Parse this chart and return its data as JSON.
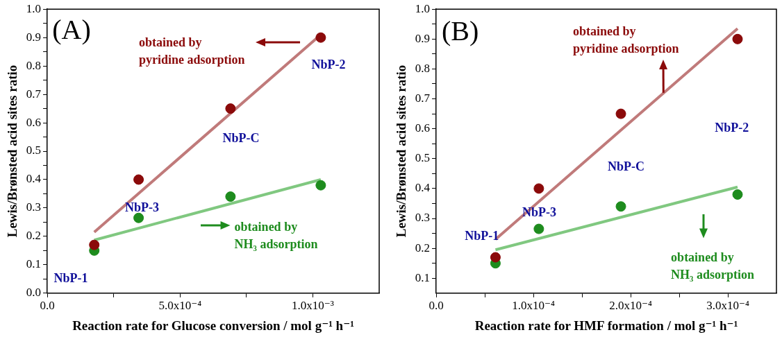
{
  "chart_data": [
    {
      "type": "scatter",
      "marker": "circle",
      "grid": false,
      "legend": false,
      "xlabel": "Reaction rate for Glucose conversion / mol g⁻¹ h⁻¹",
      "ylabel": "Lewis/Brønsted acid sites ratio",
      "xlim": [
        0,
        0.00125
      ],
      "xticks": [
        {
          "value": 0,
          "label": "0.0"
        },
        {
          "value": 0.00025,
          "label": null
        },
        {
          "value": 0.0005,
          "label": "5.0x10⁻⁴"
        },
        {
          "value": 0.00075,
          "label": null
        },
        {
          "value": 0.001,
          "label": "1.0x10⁻³"
        }
      ],
      "ylim": [
        0,
        1
      ],
      "yticks": [
        {
          "value": 0,
          "label": "0.0"
        },
        {
          "value": 0.05,
          "label": null
        },
        0.1,
        {
          "value": 0.15,
          "label": null
        },
        0.2,
        {
          "value": 0.25,
          "label": null
        },
        0.3,
        {
          "value": 0.35,
          "label": null
        },
        0.4,
        {
          "value": 0.45,
          "label": null
        },
        0.5,
        {
          "value": 0.55,
          "label": null
        },
        0.6,
        {
          "value": 0.65,
          "label": null
        },
        0.7,
        {
          "value": 0.75,
          "label": null
        },
        0.8,
        {
          "value": 0.85,
          "label": null
        },
        0.9,
        {
          "value": 0.95,
          "label": null
        },
        {
          "value": 1,
          "label": "1.0"
        }
      ],
      "x": [
        0.000177,
        0.000344,
        0.00069,
        0.00103
      ],
      "series": [
        {
          "color": "#8b0a0a",
          "values": [
            0.17,
            0.4,
            0.65,
            0.9
          ]
        },
        {
          "color": "#1e8c1e",
          "values": [
            0.15,
            0.265,
            0.34,
            0.38
          ]
        },
        {
          "type": "line",
          "marker": "none",
          "color": "#c07a7a",
          "x": [
            0.000177,
            0.00103
          ],
          "values": [
            0.215,
            0.91
          ]
        },
        {
          "type": "line",
          "marker": "none",
          "color": "#80c880",
          "x": [
            0.000177,
            0.00103
          ],
          "values": [
            0.187,
            0.4
          ]
        }
      ],
      "annotations": [
        "(A)",
        "obtained by\npyridine adsorption",
        "NbP-2",
        "NbP-C",
        "NbP-3",
        "NbP-1",
        "obtained by\nNH₃ adsorption"
      ]
    },
    {
      "type": "scatter",
      "marker": "circle",
      "grid": false,
      "legend": false,
      "xlabel": "Reaction rate for HMF formation / mol g⁻¹ h⁻¹",
      "ylabel": "Lewis/Brønsted acid sites ratio",
      "xlim": [
        0,
        0.00035
      ],
      "xticks": [
        {
          "value": 0,
          "label": "0.0"
        },
        {
          "value": 5e-05,
          "label": null
        },
        {
          "value": 0.0001,
          "label": "1.0x10⁻⁴"
        },
        {
          "value": 0.00015,
          "label": null
        },
        {
          "value": 0.0002,
          "label": "2.0x10⁻⁴"
        },
        {
          "value": 0.00025,
          "label": null
        },
        {
          "value": 0.0003,
          "label": "3.0x10⁻⁴"
        }
      ],
      "ylim": [
        0.05,
        1
      ],
      "yticks": [
        0.1,
        {
          "value": 0.15,
          "label": null
        },
        0.2,
        {
          "value": 0.25,
          "label": null
        },
        0.3,
        {
          "value": 0.35,
          "label": null
        },
        0.4,
        {
          "value": 0.45,
          "label": null
        },
        0.5,
        {
          "value": 0.55,
          "label": null
        },
        0.6,
        {
          "value": 0.65,
          "label": null
        },
        0.7,
        {
          "value": 0.75,
          "label": null
        },
        0.8,
        {
          "value": 0.85,
          "label": null
        },
        0.9,
        {
          "value": 0.95,
          "label": null
        },
        {
          "value": 1,
          "label": "1.0"
        }
      ],
      "x": [
        6.1e-05,
        0.0001056,
        0.00019,
        0.00031
      ],
      "series": [
        {
          "color": "#8b0a0a",
          "values": [
            0.17,
            0.4,
            0.65,
            0.9
          ]
        },
        {
          "color": "#1e8c1e",
          "values": [
            0.15,
            0.265,
            0.34,
            0.38
          ]
        },
        {
          "type": "line",
          "marker": "none",
          "color": "#c07a7a",
          "x": [
            6.1e-05,
            0.00031
          ],
          "values": [
            0.23,
            0.935
          ]
        },
        {
          "type": "line",
          "marker": "none",
          "color": "#80c880",
          "x": [
            6.1e-05,
            0.00031
          ],
          "values": [
            0.195,
            0.405
          ]
        }
      ],
      "annotations": [
        "(B)",
        {
          "text": "obtained by\npyridine adsorption",
          "x": 0.000234,
          "y": 0.72
        },
        "NbP-2",
        "NbP-C",
        "NbP-3",
        "NbP-1",
        "obtained by\nNH₃ adsorption"
      ]
    }
  ]
}
